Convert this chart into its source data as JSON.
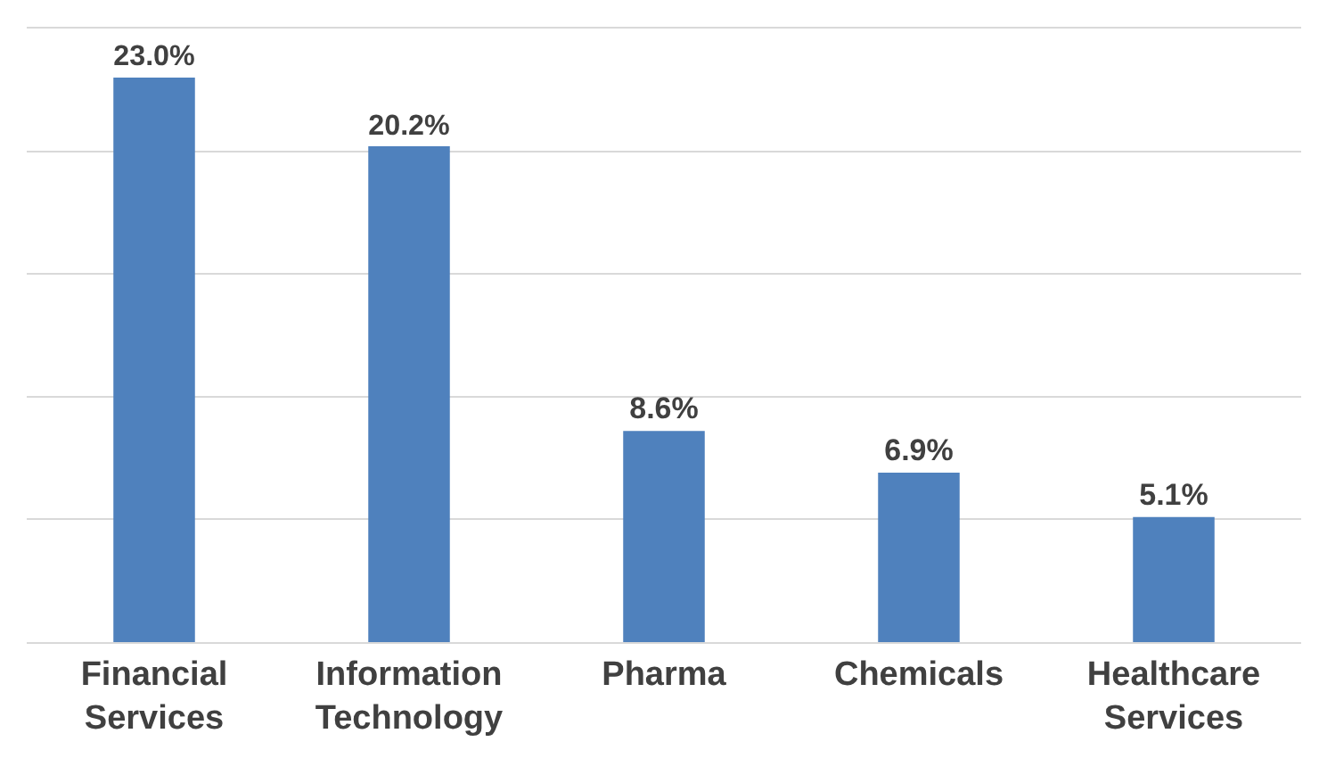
{
  "chart_data": {
    "type": "bar",
    "categories": [
      "Financial Services",
      "Information Technology",
      "Pharma",
      "Chemicals",
      "Healthcare Services"
    ],
    "values": [
      23.0,
      20.2,
      8.6,
      6.9,
      5.1
    ],
    "value_labels": [
      "23.0%",
      "20.2%",
      "8.6%",
      "6.9%",
      "5.1%"
    ],
    "color": "#4f81bd",
    "ylim": [
      0,
      25
    ],
    "yticks": [
      {
        "value": 0,
        "label": null
      },
      {
        "value": 5,
        "label": null
      },
      {
        "value": 10,
        "label": null
      },
      {
        "value": 15,
        "label": null
      },
      {
        "value": 20,
        "label": null
      },
      {
        "value": 25,
        "label": null
      }
    ],
    "tick_labels": "x",
    "grid": "y"
  }
}
